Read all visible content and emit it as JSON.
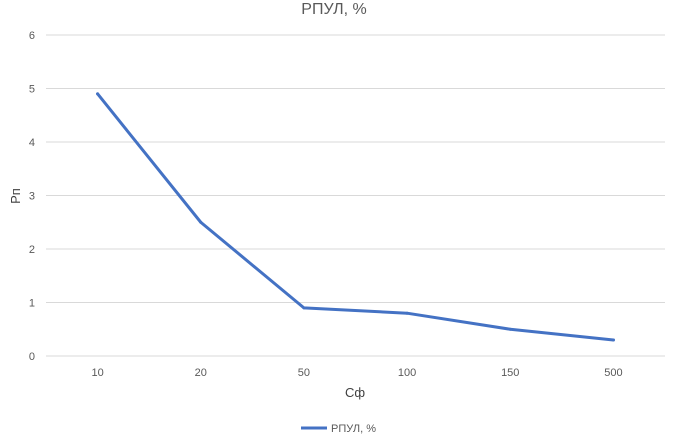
{
  "chart_data": {
    "type": "line",
    "title": "РПУЛ, %",
    "xlabel": "Сф",
    "ylabel": "Рп",
    "categories": [
      "10",
      "20",
      "50",
      "100",
      "150",
      "500"
    ],
    "series": [
      {
        "name": "РПУЛ, %",
        "values": [
          4.9,
          2.5,
          0.9,
          0.8,
          0.5,
          0.3
        ],
        "color": "#4472c4"
      }
    ],
    "ylim": [
      0,
      6
    ],
    "yticks": [
      "0",
      "1",
      "2",
      "3",
      "4",
      "5",
      "6"
    ],
    "grid": true,
    "legend_position": "bottom"
  }
}
